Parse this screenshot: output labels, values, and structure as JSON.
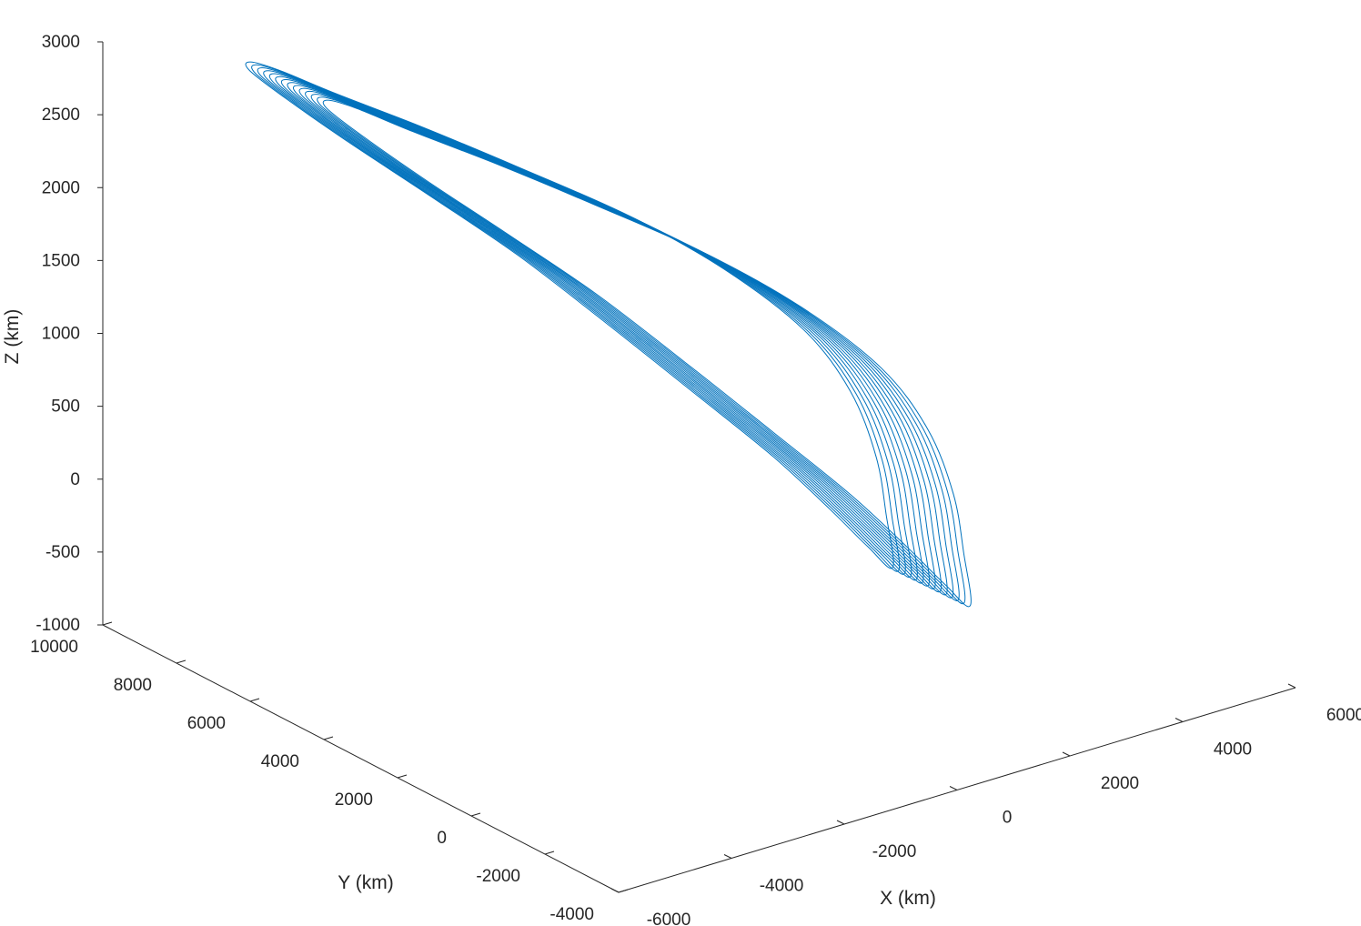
{
  "chart_data": {
    "type": "line",
    "projection": "3d",
    "title": "",
    "xlabel": "X (km)",
    "ylabel": "Y (km)",
    "zlabel": "Z (km)",
    "xlim": [
      -6000,
      6000
    ],
    "ylim": [
      -4000,
      10000
    ],
    "zlim": [
      -1000,
      3000
    ],
    "x_ticks": [
      -6000,
      -4000,
      -2000,
      0,
      2000,
      4000,
      6000
    ],
    "y_ticks": [
      -4000,
      -2000,
      0,
      2000,
      4000,
      6000,
      8000,
      10000
    ],
    "z_ticks": [
      -1000,
      -500,
      0,
      500,
      1000,
      1500,
      2000,
      2500,
      3000
    ],
    "x_tick_labels": [
      "-6000",
      "-4000",
      "-2000",
      "0",
      "2000",
      "4000",
      "6000"
    ],
    "y_tick_labels": [
      "-4000",
      "-2000",
      "0",
      "2000",
      "4000",
      "6000",
      "8000",
      "10000"
    ],
    "z_tick_labels": [
      "-1000",
      "-500",
      "0",
      "500",
      "1000",
      "1500",
      "2000",
      "2500",
      "3000"
    ],
    "grid": false,
    "legend": "none",
    "line_color": "#0072BD",
    "orbit": {
      "description_series": "repeated nearly-closed elliptical orbit loops with slow drift",
      "loops": 14,
      "points": [
        [
          3500,
          1000,
          -800
        ],
        [
          4300,
          2400,
          -720
        ],
        [
          4900,
          3600,
          -540
        ],
        [
          5100,
          4600,
          -250
        ],
        [
          4800,
          5400,
          100
        ],
        [
          3900,
          6200,
          520
        ],
        [
          2600,
          6800,
          960
        ],
        [
          900,
          7200,
          1440
        ],
        [
          -700,
          7400,
          1880
        ],
        [
          -2200,
          7400,
          2280
        ],
        [
          -3400,
          7100,
          2620
        ],
        [
          -4300,
          6500,
          2860
        ],
        [
          -4900,
          5600,
          2990
        ],
        [
          -5100,
          4300,
          2990
        ],
        [
          -4900,
          2900,
          2850
        ],
        [
          -4300,
          1600,
          2580
        ],
        [
          -3400,
          600,
          2200
        ],
        [
          -2300,
          -100,
          1700
        ],
        [
          -1000,
          -500,
          1120
        ],
        [
          400,
          -500,
          520
        ],
        [
          1600,
          -200,
          -20
        ],
        [
          2600,
          300,
          -460
        ],
        [
          3500,
          1000,
          -800
        ]
      ],
      "drift_per_loop": [
        -60,
        70,
        18
      ]
    }
  }
}
